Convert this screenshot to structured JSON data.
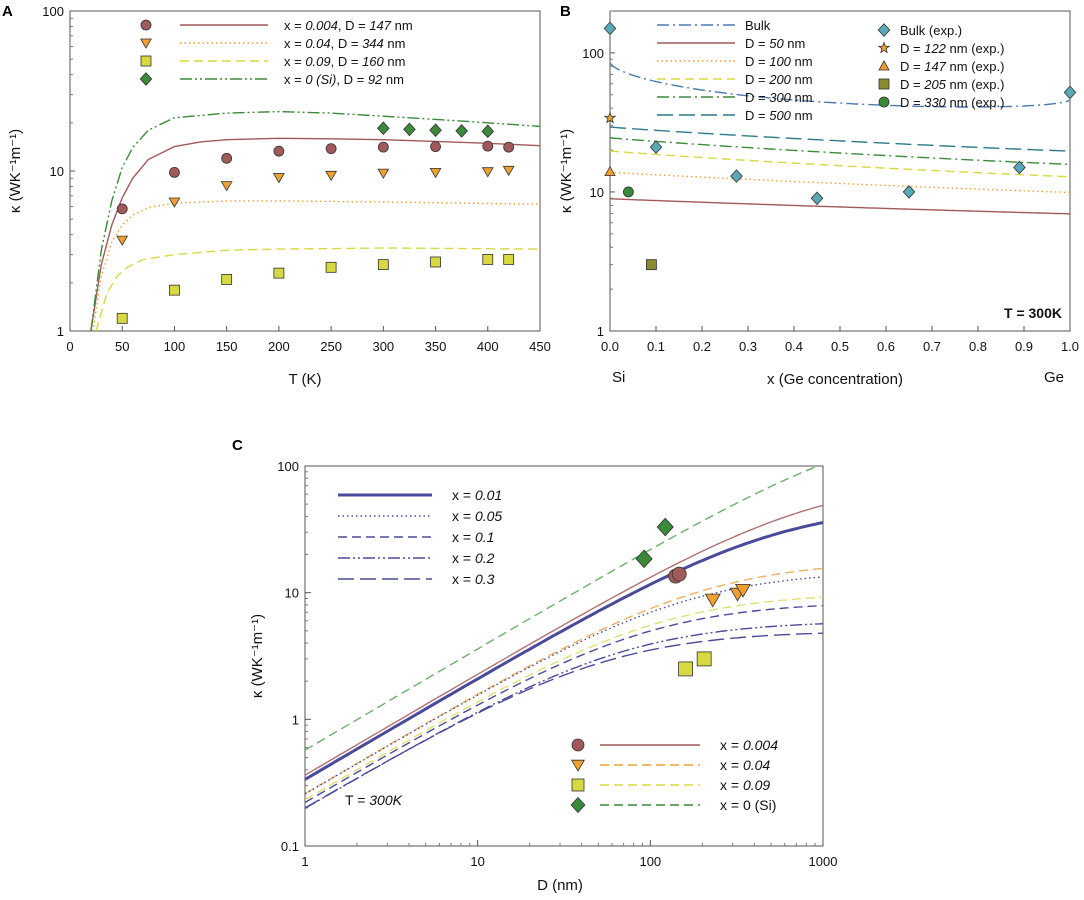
{
  "colors": {
    "brown": "#a05a5a",
    "orange": "#f0a030",
    "yellow": "#d8d840",
    "green": "#3a8a3a",
    "blue": "#4a4a9c",
    "teal": "#2a7a8a",
    "bulk": "#4a7ab0"
  },
  "chart_data": [
    {
      "panel": "A",
      "type": "line",
      "xlabel": "T (K)",
      "ylabel": "κ (WK⁻¹m⁻¹)",
      "xlim": [
        0,
        450
      ],
      "ylim": [
        1,
        100
      ],
      "yscale": "log",
      "xticks": [
        0,
        50,
        100,
        150,
        200,
        250,
        300,
        350,
        400,
        450
      ],
      "yticks": [
        1,
        10,
        100
      ],
      "legend": [
        {
          "x_label": "x = ",
          "x": "0.004",
          "d_label": ", D = ",
          "d": "147",
          "unit": " nm",
          "marker": "circle",
          "color": "#a05a5a",
          "line": "solid"
        },
        {
          "x_label": "x = ",
          "x": "0.04",
          "d_label": ", D = ",
          "d": "344",
          "unit": " nm",
          "marker": "tri-down",
          "color": "#f0a030",
          "line": "dotted"
        },
        {
          "x_label": "x = ",
          "x": "0.09",
          "d_label": ", D = ",
          "d": "160",
          "unit": " nm",
          "marker": "square",
          "color": "#d8d840",
          "line": "dashed"
        },
        {
          "x_label": "x = ",
          "x": "0 (Si)",
          "d_label": ", D = ",
          "d": "92",
          "unit": " nm",
          "marker": "diamond",
          "color": "#3a8a3a",
          "line": "dashdotdot"
        }
      ],
      "series": [
        {
          "name": "x = 0.004 model",
          "color": "#a05a5a",
          "line": "solid",
          "x": [
            20,
            30,
            40,
            50,
            60,
            75,
            100,
            125,
            150,
            200,
            250,
            300,
            350,
            400,
            450
          ],
          "y": [
            1.0,
            2.6,
            4.6,
            6.8,
            9.0,
            11.8,
            14.2,
            15.2,
            15.7,
            16.0,
            15.9,
            15.7,
            15.3,
            14.9,
            14.4
          ]
        },
        {
          "name": "x = 0.04 model",
          "color": "#f0a030",
          "line": "dotted",
          "x": [
            22,
            30,
            40,
            50,
            60,
            75,
            100,
            150,
            200,
            300,
            450
          ],
          "y": [
            1.0,
            2.2,
            3.6,
            4.6,
            5.3,
            5.9,
            6.3,
            6.5,
            6.5,
            6.4,
            6.2
          ]
        },
        {
          "name": "x = 0.09 model",
          "color": "#d8d840",
          "line": "dashed",
          "x": [
            25,
            35,
            45,
            55,
            70,
            100,
            150,
            200,
            300,
            450
          ],
          "y": [
            1.0,
            1.7,
            2.2,
            2.5,
            2.8,
            3.0,
            3.2,
            3.25,
            3.3,
            3.25
          ]
        },
        {
          "name": "x = 0 (Si) model",
          "color": "#3a8a3a",
          "line": "dashdotdot",
          "x": [
            20,
            30,
            40,
            50,
            60,
            75,
            100,
            150,
            200,
            250,
            300,
            350,
            400,
            450
          ],
          "y": [
            1.0,
            3.2,
            6.5,
            10.5,
            14.0,
            18.0,
            21.5,
            23.0,
            23.5,
            23.0,
            22.0,
            21.0,
            20.0,
            19.0
          ]
        }
      ],
      "points": [
        {
          "marker": "circle",
          "color": "#a05a5a",
          "x": [
            50,
            100,
            150,
            200,
            250,
            300,
            350,
            400,
            420
          ],
          "y": [
            5.8,
            9.8,
            12.0,
            13.3,
            13.8,
            14.1,
            14.2,
            14.3,
            14.1
          ]
        },
        {
          "marker": "tri-down",
          "color": "#f0a030",
          "x": [
            50,
            100,
            150,
            200,
            250,
            300,
            350,
            400,
            420
          ],
          "y": [
            3.7,
            6.4,
            8.1,
            9.1,
            9.4,
            9.7,
            9.8,
            9.9,
            10.1
          ]
        },
        {
          "marker": "square",
          "color": "#d8d840",
          "x": [
            50,
            100,
            150,
            200,
            250,
            300,
            350,
            400,
            420
          ],
          "y": [
            1.2,
            1.8,
            2.1,
            2.3,
            2.5,
            2.6,
            2.7,
            2.8,
            2.8
          ]
        },
        {
          "marker": "diamond",
          "color": "#3a8a3a",
          "x": [
            300,
            325,
            350,
            375,
            400
          ],
          "y": [
            18.5,
            18.2,
            18.0,
            17.8,
            17.7
          ]
        }
      ]
    },
    {
      "panel": "B",
      "type": "line",
      "xlabel": "x (Ge concentration)",
      "ylabel": "κ (WK⁻¹m⁻¹)",
      "xlim": [
        0,
        1
      ],
      "ylim": [
        1,
        200
      ],
      "yscale": "log",
      "xticks": [
        0.0,
        0.1,
        0.2,
        0.3,
        0.4,
        0.5,
        0.6,
        0.7,
        0.8,
        0.9,
        1.0
      ],
      "xtick_labels": [
        "0.0",
        "0.1",
        "0.2",
        "0.3",
        "0.4",
        "0.5",
        "0.6",
        "0.7",
        "0.8",
        "0.9",
        "1.0"
      ],
      "yticks": [
        1,
        10,
        100
      ],
      "end_labels": {
        "left": "Si",
        "right": "Ge"
      },
      "annotation": "T = 300K",
      "legend_lines": [
        {
          "label": "Bulk",
          "prefix": "",
          "value": "",
          "unit": "",
          "color": "#4a7ab0",
          "line": "dashdot"
        },
        {
          "label": "",
          "prefix": "D = ",
          "value": "50",
          "unit": " nm",
          "color": "#a05a5a",
          "line": "solid"
        },
        {
          "label": "",
          "prefix": "D = ",
          "value": "100",
          "unit": " nm",
          "color": "#f0a030",
          "line": "dotted"
        },
        {
          "label": "",
          "prefix": "D = ",
          "value": "200",
          "unit": " nm",
          "color": "#d8d840",
          "line": "dashed"
        },
        {
          "label": "",
          "prefix": "D = ",
          "value": "300",
          "unit": " nm",
          "color": "#3a8a3a",
          "line": "dashdot"
        },
        {
          "label": "",
          "prefix": "D = ",
          "value": "500",
          "unit": " nm",
          "color": "#2a7a8a",
          "line": "longdash"
        }
      ],
      "legend_markers": [
        {
          "label": "Bulk (exp.)",
          "prefix": "",
          "value": "",
          "unit": "",
          "marker": "diamond",
          "color": "#5aa8b8"
        },
        {
          "label": "",
          "prefix": "D = ",
          "value": "122",
          "unit": " nm (exp.)",
          "marker": "star",
          "color": "#f0a030"
        },
        {
          "label": "",
          "prefix": "D = ",
          "value": "147",
          "unit": " nm (exp.)",
          "marker": "triangle",
          "color": "#f0a030"
        },
        {
          "label": "",
          "prefix": "D = ",
          "value": "205",
          "unit": " nm (exp.)",
          "marker": "square",
          "color": "#8a8a30"
        },
        {
          "label": "",
          "prefix": "D = ",
          "value": "330",
          "unit": " nm (exp.)",
          "marker": "circle",
          "color": "#3a8a3a"
        }
      ],
      "series": [
        {
          "name": "Bulk",
          "color": "#4a7ab0",
          "line": "dashdot",
          "K0": 150,
          "K1": 60,
          "A": 0.0145,
          "B": 0.005
        },
        {
          "name": "D = 500 nm",
          "color": "#2a7a8a",
          "line": "longdash",
          "K0": 30,
          "K1": 20,
          "A": 0.0011,
          "B": 0.0008
        },
        {
          "name": "D = 300 nm",
          "color": "#3a8a3a",
          "line": "dashdot",
          "K0": 25,
          "K1": 16,
          "A": 0.0011,
          "B": 0.0008
        },
        {
          "name": "D = 200 nm",
          "color": "#d8d840",
          "line": "dashed",
          "K0": 20,
          "K1": 13,
          "A": 0.0011,
          "B": 0.0008
        },
        {
          "name": "D = 100 nm",
          "color": "#f0a030",
          "line": "dotted",
          "K0": 14,
          "K1": 10,
          "A": 0.0011,
          "B": 0.0008
        },
        {
          "name": "D = 50 nm",
          "color": "#a05a5a",
          "line": "solid",
          "K0": 9,
          "K1": 7,
          "A": 0.0011,
          "B": 0.0008
        }
      ],
      "points": [
        {
          "marker": "diamond",
          "color": "#5aa8b8",
          "x": [
            0.0,
            0.1,
            0.275,
            0.45,
            0.65,
            0.89,
            1.0
          ],
          "y": [
            150,
            21,
            13,
            9,
            10,
            15,
            52
          ]
        },
        {
          "marker": "star",
          "color": "#f0a030",
          "x": [
            0.0
          ],
          "y": [
            34
          ]
        },
        {
          "marker": "triangle",
          "color": "#f0a030",
          "x": [
            0.0
          ],
          "y": [
            14
          ]
        },
        {
          "marker": "square",
          "color": "#8a8a30",
          "x": [
            0.09
          ],
          "y": [
            3.0
          ]
        },
        {
          "marker": "circle",
          "color": "#3a8a3a",
          "x": [
            0.04
          ],
          "y": [
            10
          ]
        }
      ]
    },
    {
      "panel": "C",
      "type": "line",
      "xlabel": "D (nm)",
      "ylabel": "κ (WK⁻¹m⁻¹)",
      "xscale": "log",
      "yscale": "log",
      "xlim": [
        1,
        1000
      ],
      "ylim": [
        0.1,
        100
      ],
      "xticks": [
        1,
        10,
        100,
        1000
      ],
      "yticks": [
        0.1,
        1,
        10,
        100
      ],
      "annotation_prefix": "T = ",
      "annotation_value": "300K",
      "legend_top": [
        {
          "prefix": "x = ",
          "value": "0.01",
          "color": "#4a4a9c",
          "line": "thick-solid"
        },
        {
          "prefix": "x = ",
          "value": "0.05",
          "color": "#4a4a9c",
          "line": "dotted"
        },
        {
          "prefix": "x = ",
          "value": "0.1",
          "color": "#4a4a9c",
          "line": "dashed"
        },
        {
          "prefix": "x = ",
          "value": "0.2",
          "color": "#4a4a9c",
          "line": "dashdotdot"
        },
        {
          "prefix": "x = ",
          "value": "0.3",
          "color": "#4a4a9c",
          "line": "longdash"
        }
      ],
      "legend_bottom": [
        {
          "prefix": "x = ",
          "value": "0.004",
          "marker": "circle",
          "color": "#a05a5a",
          "line": "solid"
        },
        {
          "prefix": "x = ",
          "value": "0.04",
          "marker": "tri-down",
          "color": "#f0a030",
          "line": "dashed"
        },
        {
          "prefix": "x = ",
          "value": "0.09",
          "marker": "square",
          "color": "#d8d840",
          "line": "dashed"
        },
        {
          "prefix": "x = ",
          "value": "0 (Si)",
          "marker": "diamond",
          "color": "#3a8a3a",
          "line": "dashed"
        }
      ],
      "series": [
        {
          "name": "x = 0 (Si)",
          "color": "#6ab06a",
          "line": "dashed",
          "kinf": 250,
          "L": 2000
        },
        {
          "name": "x = 0.004",
          "color": "#b07070",
          "line": "solid",
          "kinf": 80,
          "L": 850
        },
        {
          "name": "x = 0.01",
          "color": "#4a4a9c",
          "line": "thick-solid",
          "kinf": 50,
          "L": 520
        },
        {
          "name": "x = 0.04",
          "color": "#f0b060",
          "line": "dashed",
          "kinf": 18,
          "L": 200
        },
        {
          "name": "x = 0.05",
          "color": "#4a4a9c",
          "line": "dotted",
          "kinf": 15,
          "L": 160
        },
        {
          "name": "x = 0.09",
          "color": "#e0e070",
          "line": "dashed",
          "kinf": 10,
          "L": 110
        },
        {
          "name": "x = 0.1",
          "color": "#4a4a9c",
          "line": "dashed",
          "kinf": 8.5,
          "L": 95
        },
        {
          "name": "x = 0.2",
          "color": "#4a4a9c",
          "line": "dashdotdot",
          "kinf": 6,
          "L": 70
        },
        {
          "name": "x = 0.3",
          "color": "#4a4a9c",
          "line": "longdash",
          "kinf": 5,
          "L": 55
        }
      ],
      "points": [
        {
          "marker": "circle",
          "color": "#a05a5a",
          "x": [
            140,
            147
          ],
          "y": [
            13.5,
            14.0
          ]
        },
        {
          "marker": "tri-down",
          "color": "#f0a030",
          "x": [
            230,
            320,
            344
          ],
          "y": [
            8.8,
            9.8,
            10.5
          ]
        },
        {
          "marker": "square",
          "color": "#d8d840",
          "x": [
            160,
            205
          ],
          "y": [
            2.5,
            3.0
          ]
        },
        {
          "marker": "diamond",
          "color": "#3a8a3a",
          "x": [
            92,
            122
          ],
          "y": [
            18.5,
            33.0
          ]
        }
      ]
    }
  ]
}
